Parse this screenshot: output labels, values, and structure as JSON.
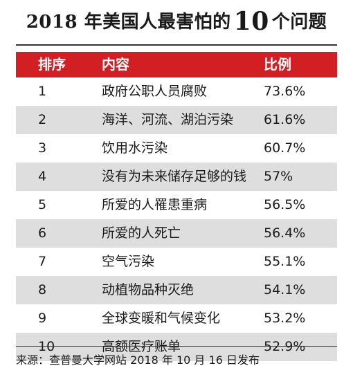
{
  "title": {
    "prefix": "2018 年美国人最害怕的",
    "number": "10",
    "suffix": "个问题"
  },
  "table": {
    "headers": {
      "rank": "排序",
      "content": "内容",
      "ratio": "比例"
    },
    "rows": [
      {
        "rank": "1",
        "content": "政府公职人员腐败",
        "ratio": "73.6%"
      },
      {
        "rank": "2",
        "content": "海洋、河流、湖泊污染",
        "ratio": "61.6%"
      },
      {
        "rank": "3",
        "content": "饮用水污染",
        "ratio": "60.7%"
      },
      {
        "rank": "4",
        "content": "没有为未来储存足够的钱",
        "ratio": "57%"
      },
      {
        "rank": "5",
        "content": "所爱的人罹患重病",
        "ratio": "56.5%"
      },
      {
        "rank": "6",
        "content": "所爱的人死亡",
        "ratio": "56.4%"
      },
      {
        "rank": "7",
        "content": "空气污染",
        "ratio": "55.1%"
      },
      {
        "rank": "8",
        "content": "动植物品种灭绝",
        "ratio": "54.1%"
      },
      {
        "rank": "9",
        "content": "全球变暖和气候变化",
        "ratio": "53.2%"
      },
      {
        "rank": "10",
        "content": "高额医疗账单",
        "ratio": "52.9%"
      }
    ]
  },
  "source": "来源：查普曼大学网站 2018 年 10 月 16 日发布",
  "colors": {
    "header_bg": "#d21f24",
    "alt_row_bg": "#dedede"
  }
}
